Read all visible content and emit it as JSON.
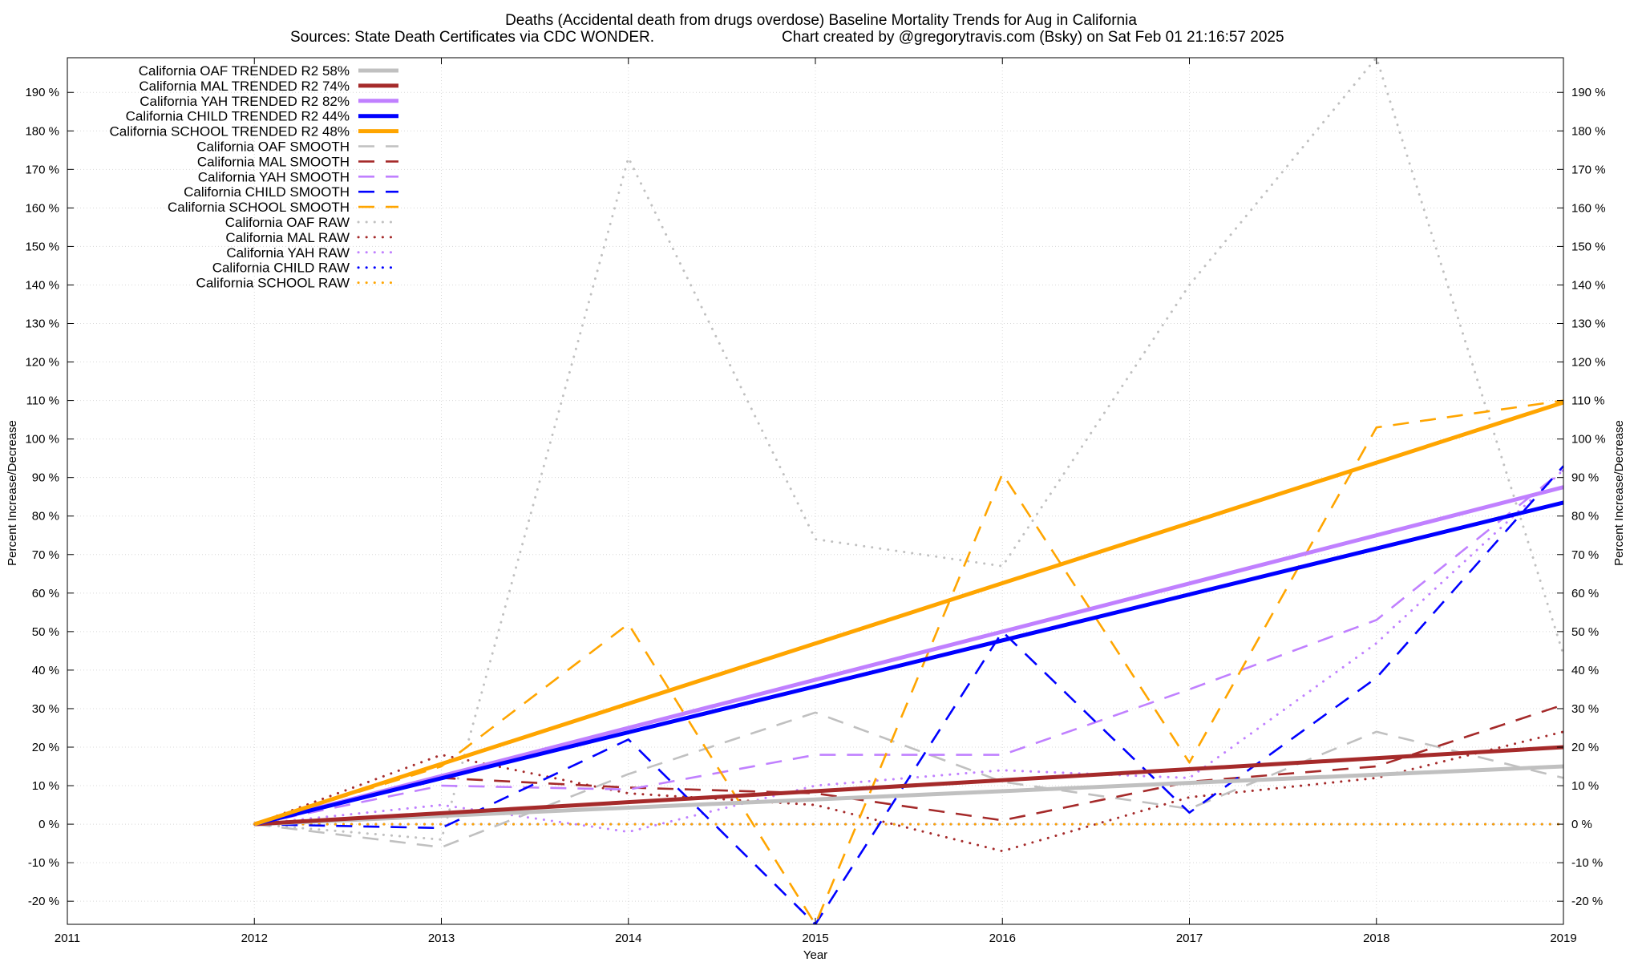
{
  "chart_data": {
    "type": "line",
    "title": "Deaths (Accidental death from drugs overdose)  Baseline Mortality Trends for Aug in California",
    "subtitle_left": "Sources: State Death Certificates via CDC WONDER.",
    "subtitle_right": "Chart created by @gregorytravis.com (Bsky) on Sat Feb 01 21:16:57 2025",
    "xlabel": "Year",
    "ylabel_left": "Percent Increase/Decrease",
    "ylabel_right": "Percent Increase/Decrease",
    "xlim": [
      2011,
      2019
    ],
    "ylim": [
      -26,
      199
    ],
    "x_ticks": [
      "2011",
      "2012",
      "2013",
      "2014",
      "2015",
      "2016",
      "2017",
      "2018",
      "2019"
    ],
    "y_ticks": [
      -20,
      -10,
      0,
      10,
      20,
      30,
      40,
      50,
      60,
      70,
      80,
      90,
      100,
      110,
      120,
      130,
      140,
      150,
      160,
      170,
      180,
      190
    ],
    "y_tick_suffix": " %",
    "grid": true,
    "legend_position": "top-left",
    "series": [
      {
        "name": "California OAF TRENDED R2  58%",
        "style": "solid",
        "color": "#c0c0c0",
        "x": [
          2012,
          2019
        ],
        "values": [
          0,
          15
        ]
      },
      {
        "name": "California MAL TRENDED R2  74%",
        "style": "solid",
        "color": "#a52a2a",
        "x": [
          2012,
          2019
        ],
        "values": [
          0,
          20
        ]
      },
      {
        "name": "California YAH TRENDED R2  82%",
        "style": "solid",
        "color": "#c080ff",
        "x": [
          2012,
          2019
        ],
        "values": [
          0,
          87.5
        ]
      },
      {
        "name": "California CHILD TRENDED R2  44%",
        "style": "solid",
        "color": "#0000ff",
        "x": [
          2012,
          2019
        ],
        "values": [
          0,
          83.5
        ]
      },
      {
        "name": "California SCHOOL TRENDED R2  48%",
        "style": "solid",
        "color": "#ffa500",
        "x": [
          2012,
          2019
        ],
        "values": [
          0,
          109.5
        ]
      },
      {
        "name": "California OAF SMOOTH",
        "style": "dashed",
        "color": "#c0c0c0",
        "x": [
          2012,
          2013,
          2014,
          2015,
          2016,
          2017,
          2018,
          2019
        ],
        "values": [
          0,
          -6,
          13,
          29,
          11,
          4,
          24,
          12
        ]
      },
      {
        "name": "California MAL SMOOTH",
        "style": "dashed",
        "color": "#a52a2a",
        "x": [
          2012,
          2013,
          2014,
          2015,
          2016,
          2017,
          2018,
          2019
        ],
        "values": [
          0,
          12,
          9.5,
          8,
          1,
          11,
          15,
          31
        ]
      },
      {
        "name": "California YAH SMOOTH",
        "style": "dashed",
        "color": "#c080ff",
        "x": [
          2012,
          2013,
          2014,
          2015,
          2016,
          2017,
          2018,
          2019
        ],
        "values": [
          0,
          10,
          9,
          18,
          18,
          35,
          53,
          92
        ]
      },
      {
        "name": "California CHILD SMOOTH",
        "style": "dashed",
        "color": "#0000ff",
        "x": [
          2012,
          2013,
          2014,
          2015,
          2016,
          2017,
          2018,
          2019
        ],
        "values": [
          0,
          -1,
          22,
          -26,
          50,
          3,
          38,
          93
        ]
      },
      {
        "name": "California SCHOOL SMOOTH",
        "style": "dashed",
        "color": "#ffa500",
        "x": [
          2012,
          2013,
          2014,
          2015,
          2016,
          2017,
          2018,
          2019
        ],
        "values": [
          0,
          15,
          52,
          -26,
          91,
          16,
          103,
          110
        ]
      },
      {
        "name": "California OAF RAW",
        "style": "dotted",
        "color": "#c0c0c0",
        "x": [
          2012,
          2013,
          2014,
          2015,
          2016,
          2017,
          2018,
          2019
        ],
        "values": [
          0,
          -4,
          173,
          74,
          67,
          140,
          199,
          44
        ]
      },
      {
        "name": "California MAL RAW",
        "style": "dotted",
        "color": "#a52a2a",
        "x": [
          2012,
          2013,
          2014,
          2015,
          2016,
          2017,
          2018,
          2019
        ],
        "values": [
          0,
          18,
          8,
          5,
          -7,
          7,
          12,
          24
        ]
      },
      {
        "name": "California YAH RAW",
        "style": "dotted",
        "color": "#c080ff",
        "x": [
          2012,
          2013,
          2014,
          2015,
          2016,
          2017,
          2018,
          2019
        ],
        "values": [
          0,
          5,
          -2,
          10,
          14,
          12,
          47,
          92
        ]
      },
      {
        "name": "California CHILD RAW",
        "style": "dotted",
        "color": "#0000ff",
        "x": [
          2012,
          2013,
          2014,
          2015,
          2016,
          2017,
          2018,
          2019
        ],
        "values": [
          0,
          0,
          0,
          0,
          0,
          0,
          0,
          0
        ]
      },
      {
        "name": "California SCHOOL RAW",
        "style": "dotted",
        "color": "#ffa500",
        "x": [
          2012,
          2013,
          2014,
          2015,
          2016,
          2017,
          2018,
          2019
        ],
        "values": [
          0,
          0,
          0,
          0,
          0,
          0,
          0,
          0
        ]
      }
    ]
  }
}
